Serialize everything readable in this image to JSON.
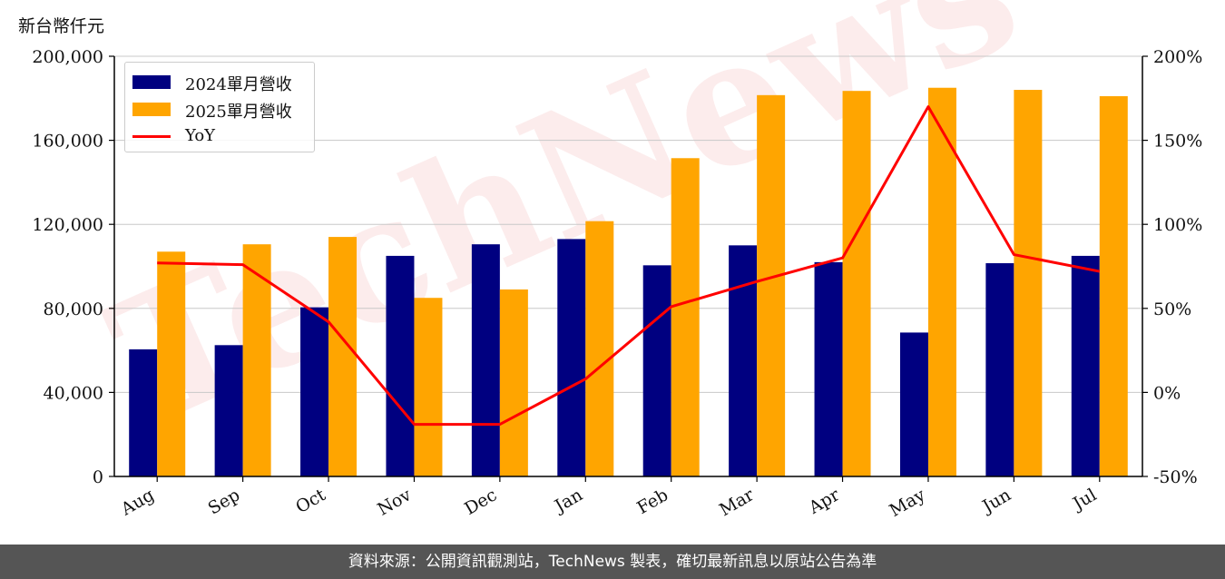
{
  "unit_label": "新台幣仟元",
  "footer": "資料來源：公開資訊觀測站，TechNews 製表，確切最新訊息以原站公告為準",
  "watermark": "TechNews",
  "colors": {
    "series_2024": "#000080",
    "series_2025": "#FFA500",
    "yoy": "#FF0000",
    "watermark": "#e03030"
  },
  "chart_data": {
    "type": "bar",
    "categories": [
      "Aug",
      "Sep",
      "Oct",
      "Nov",
      "Dec",
      "Jan",
      "Feb",
      "Mar",
      "Apr",
      "May",
      "Jun",
      "Jul"
    ],
    "series": [
      {
        "name": "2024單月營收",
        "values": [
          60500,
          62500,
          80500,
          105000,
          110500,
          113000,
          100500,
          110000,
          102000,
          68500,
          101500,
          105000
        ]
      },
      {
        "name": "2025單月營收",
        "values": [
          107000,
          110500,
          114000,
          85000,
          89000,
          121500,
          151500,
          181500,
          183500,
          185000,
          184000,
          181000
        ]
      }
    ],
    "line_series": {
      "name": "YoY",
      "axis": "right",
      "values": [
        77,
        76,
        42,
        -19,
        -19,
        8,
        51,
        66,
        80,
        170,
        82,
        72
      ]
    },
    "ylim_left": [
      0,
      200000
    ],
    "ylim_right": [
      -50,
      200
    ],
    "left_ticks": [
      "0",
      "40,000",
      "80,000",
      "120,000",
      "160,000",
      "200,000"
    ],
    "right_ticks": [
      "-50%",
      "0%",
      "50%",
      "100%",
      "150%",
      "200%"
    ],
    "grid": true,
    "legend": "top-left"
  }
}
